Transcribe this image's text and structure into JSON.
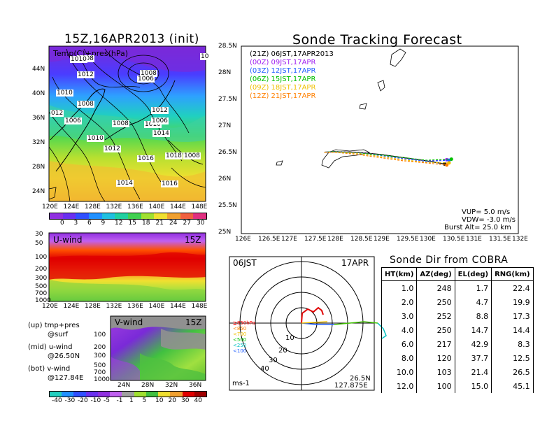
{
  "left": {
    "title": "15Z,16APR2013 (init)",
    "map_label": "Temp(C)+pres(hPa)",
    "y_ticks": [
      "44N",
      "40N",
      "36N",
      "32N",
      "28N",
      "24N"
    ],
    "x_ticks": [
      "120E",
      "124E",
      "128E",
      "132E",
      "136E",
      "140E",
      "144E",
      "148E"
    ],
    "pressure_labels": [
      "1008",
      "1010",
      "1012",
      "1008",
      "1006",
      "1010",
      "012",
      "1008",
      "1006",
      "1008",
      "1010",
      "1012",
      "1006",
      "1010",
      "1014",
      "1012",
      "1008",
      "1016",
      "1018",
      "1014",
      "1016",
      "10"
    ],
    "colorbar": [
      "0",
      "3",
      "6",
      "9",
      "12",
      "15",
      "18",
      "21",
      "24",
      "27",
      "30"
    ],
    "uwind": {
      "label": "U-wind",
      "time": "15Z",
      "y_ticks": [
        "30",
        "50",
        "100",
        "200",
        "300",
        "500",
        "700",
        "1000"
      ],
      "x_ticks": [
        "120E",
        "124E",
        "128E",
        "132E",
        "136E",
        "140E",
        "144E",
        "148E"
      ]
    },
    "vwind": {
      "label": "V-wind",
      "time": "15Z",
      "y_ticks": [
        "100",
        "200",
        "300",
        "500",
        "700",
        "1000"
      ],
      "x_ticks": [
        "24N",
        "28N",
        "32N",
        "36N"
      ]
    },
    "legend": [
      {
        "a": "(up) tmp+pres",
        "b": "@surf"
      },
      {
        "a": "(mid) u-wind",
        "b": "@26.50N"
      },
      {
        "a": "(bot) v-wind",
        "b": "@127.84E"
      }
    ],
    "wind_colorbar": [
      "-40",
      "-30",
      "-20",
      "-10",
      "-5",
      "-1",
      "1",
      "5",
      "10",
      "20",
      "30",
      "40"
    ]
  },
  "track": {
    "title": "Sonde Tracking Forecast",
    "y_ticks": [
      "28.5N",
      "28N",
      "27.5N",
      "27N",
      "26.5N",
      "26N",
      "25.5N",
      "25N"
    ],
    "x_ticks": [
      "126E",
      "126.5E",
      "127E",
      "127.5E",
      "128E",
      "128.5E",
      "129E",
      "129.5E",
      "130E",
      "130.5E",
      "131E",
      "131.5E",
      "132E"
    ],
    "legend": [
      {
        "text": "(21Z) 06JST,17APR2013",
        "color": "#000000"
      },
      {
        "text": "(00Z) 09JST,17APR",
        "color": "#a020f0"
      },
      {
        "text": "(03Z) 12JST,17APR",
        "color": "#1e5cff"
      },
      {
        "text": "(06Z) 15JST,17APR",
        "color": "#00c000"
      },
      {
        "text": "(09Z) 18JST,17APR",
        "color": "#f0c000"
      },
      {
        "text": "(12Z) 21JST,17APR",
        "color": "#ff8000"
      }
    ],
    "params": [
      "VUP=  5.0 m/s",
      "VDW= -3.0 m/s",
      "Burst Alt=  25.0 km"
    ]
  },
  "polar": {
    "time_left": "06JST",
    "date_right": "17APR",
    "ring_labels": [
      "10",
      "20",
      "30",
      "40"
    ],
    "pressure_keys": [
      {
        "text": "≧850hPa",
        "color": "#ff0000"
      },
      {
        "text": "<850",
        "color": "#ff8000"
      },
      {
        "text": "<700",
        "color": "#f0c000"
      },
      {
        "text": "<500",
        "color": "#00c000"
      },
      {
        "text": "<250",
        "color": "#00c0c0"
      },
      {
        "text": "<100",
        "color": "#1e5cff"
      }
    ],
    "unit": "ms-1",
    "lat": "26.5N",
    "lon": "127.875E"
  },
  "sonde": {
    "title": "Sonde Dir from COBRA",
    "headers": [
      "HT(km)",
      "AZ(deg)",
      "EL(deg)",
      "RNG(km)"
    ],
    "rows": [
      [
        "1.0",
        "248",
        "1.7",
        "22.4"
      ],
      [
        "2.0",
        "250",
        "4.7",
        "19.9"
      ],
      [
        "3.0",
        "252",
        "8.8",
        "17.3"
      ],
      [
        "4.0",
        "250",
        "14.7",
        "14.4"
      ],
      [
        "6.0",
        "217",
        "42.9",
        "8.3"
      ],
      [
        "8.0",
        "120",
        "37.7",
        "12.5"
      ],
      [
        "10.0",
        "103",
        "21.4",
        "26.5"
      ],
      [
        "12.0",
        "100",
        "15.0",
        "45.1"
      ]
    ]
  },
  "chart_data": [
    {
      "type": "heatmap",
      "title": "15Z,16APR2013 (init)",
      "ylabel": "Temp(C)+pres(hPa)",
      "x": [
        "120E",
        "124E",
        "128E",
        "132E",
        "136E",
        "140E",
        "144E",
        "148E"
      ],
      "y": [
        "24N",
        "28N",
        "32N",
        "36N",
        "40N",
        "44N"
      ],
      "colorbar": [
        0,
        3,
        6,
        9,
        12,
        15,
        18,
        21,
        24,
        27,
        30
      ]
    },
    {
      "type": "line",
      "title": "Sonde Tracking Forecast",
      "xlim": [
        126,
        132
      ],
      "ylim": [
        25,
        28.5
      ],
      "series": [
        {
          "name": "(21Z) 06JST,17APR2013",
          "x": [
            127.8,
            128.0,
            128.5,
            129.0,
            129.5,
            130.0,
            130.4
          ],
          "y": [
            26.52,
            26.53,
            26.52,
            26.48,
            26.42,
            26.36,
            26.3
          ]
        },
        {
          "name": "(00Z) 09JST,17APR",
          "x": [
            127.8,
            128.0,
            128.5,
            129.0,
            129.5,
            130.0,
            130.45
          ],
          "y": [
            26.52,
            26.53,
            26.52,
            26.47,
            26.41,
            26.36,
            26.38
          ]
        },
        {
          "name": "(03Z) 12JST,17APR",
          "x": [
            127.8,
            128.0,
            128.5,
            129.0,
            129.5,
            130.0,
            130.5
          ],
          "y": [
            26.52,
            26.53,
            26.51,
            26.46,
            26.4,
            26.35,
            26.37
          ]
        },
        {
          "name": "(06Z) 15JST,17APR",
          "x": [
            127.8,
            128.0,
            128.5,
            129.0,
            129.5,
            130.0,
            130.55
          ],
          "y": [
            26.52,
            26.53,
            26.51,
            26.47,
            26.42,
            26.37,
            26.39
          ]
        },
        {
          "name": "(09Z) 18JST,17APR",
          "x": [
            127.8,
            128.0,
            128.5,
            129.0,
            129.5,
            130.0,
            130.5
          ],
          "y": [
            26.52,
            26.52,
            26.5,
            26.44,
            26.38,
            26.33,
            26.32
          ]
        },
        {
          "name": "(12Z) 21JST,17APR",
          "x": [
            127.8,
            128.0,
            128.5,
            129.0,
            129.5,
            130.0,
            130.45
          ],
          "y": [
            26.52,
            26.52,
            26.48,
            26.42,
            26.36,
            26.32,
            26.28
          ]
        }
      ]
    },
    {
      "type": "table",
      "title": "Sonde Dir from COBRA",
      "columns": [
        "HT(km)",
        "AZ(deg)",
        "EL(deg)",
        "RNG(km)"
      ],
      "rows": [
        [
          1.0,
          248,
          1.7,
          22.4
        ],
        [
          2.0,
          250,
          4.7,
          19.9
        ],
        [
          3.0,
          252,
          8.8,
          17.3
        ],
        [
          4.0,
          250,
          14.7,
          14.4
        ],
        [
          6.0,
          217,
          42.9,
          8.3
        ],
        [
          8.0,
          120,
          37.7,
          12.5
        ],
        [
          10.0,
          103,
          21.4,
          26.5
        ],
        [
          12.0,
          100,
          15.0,
          45.1
        ]
      ]
    }
  ]
}
